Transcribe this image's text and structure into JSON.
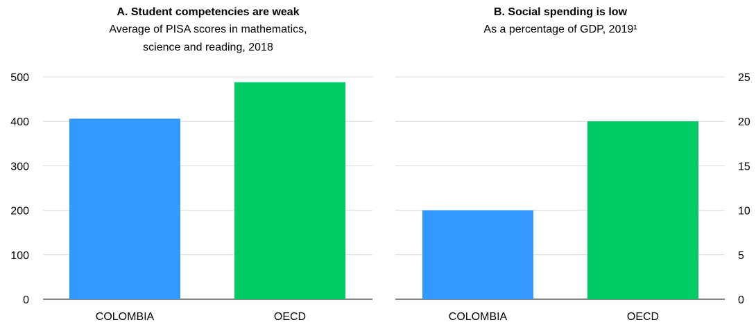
{
  "chart_data": [
    {
      "type": "bar",
      "title": "A. Student competencies are weak",
      "subtitle_lines": [
        "Average of PISA scores in mathematics,",
        "science and reading, 2018"
      ],
      "categories": [
        "COLOMBIA",
        "OECD"
      ],
      "values": [
        406,
        488
      ],
      "colors": [
        "#3399ff",
        "#00cc66"
      ],
      "ylim": [
        0,
        500
      ],
      "yticks": [
        "0",
        "100",
        "200",
        "300",
        "400",
        "500"
      ],
      "ytick_values": [
        0,
        100,
        200,
        300,
        400,
        500
      ],
      "y_axis_side": "left",
      "grid": true
    },
    {
      "type": "bar",
      "title": "B. Social spending is low",
      "subtitle_lines": [
        "As a percentage of GDP, 2019¹"
      ],
      "categories": [
        "COLOMBIA",
        "OECD"
      ],
      "values": [
        10,
        20
      ],
      "colors": [
        "#3399ff",
        "#00cc66"
      ],
      "ylim": [
        0,
        25
      ],
      "yticks": [
        "0",
        "5",
        "10",
        "15",
        "20",
        "25"
      ],
      "ytick_values": [
        0,
        5,
        10,
        15,
        20,
        25
      ],
      "y_axis_side": "right",
      "grid": true
    }
  ]
}
